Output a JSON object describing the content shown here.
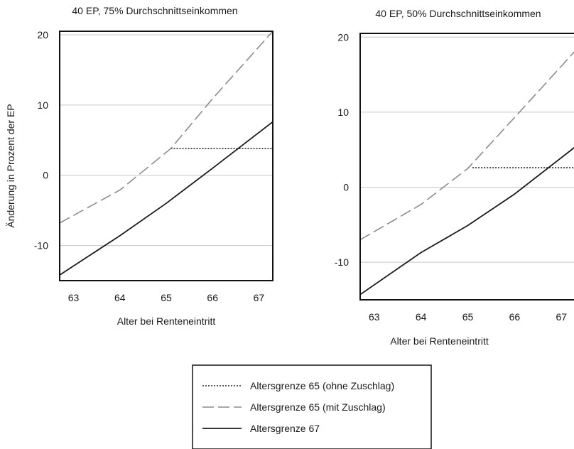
{
  "chart_data": [
    {
      "type": "line",
      "title": "40 EP, 75% Durchschnittseinkommen",
      "xlabel": "Alter bei Renteneintritt",
      "ylabel": "Änderung in Prozent der EP",
      "xlim": [
        62.7,
        67.3
      ],
      "ylim": [
        -15,
        20.5
      ],
      "xticks": [
        63,
        64,
        65,
        66,
        67
      ],
      "xtick_labels": [
        "63",
        "64",
        "65",
        "66",
        "67"
      ],
      "yticks": [
        -10,
        0,
        10,
        20
      ],
      "ytick_labels": [
        "-10",
        "0",
        "10",
        "20"
      ],
      "grid": "horizontal",
      "series": [
        {
          "name": "Altersgrenze 65 (ohne Zuschlag)",
          "style": "dotted",
          "color": "#222222",
          "points": [
            [
              65.1,
              3.8
            ],
            [
              67.3,
              3.8
            ]
          ]
        },
        {
          "name": "Altersgrenze 65 (mit Zuschlag)",
          "style": "dashed",
          "color": "#8c8c8c",
          "points": [
            [
              62.7,
              -6.8
            ],
            [
              64,
              -2.1
            ],
            [
              65.1,
              3.8
            ],
            [
              66,
              10.9
            ],
            [
              67.3,
              20.5
            ]
          ]
        },
        {
          "name": "Altersgrenze 67",
          "style": "solid",
          "color": "#1a1a1a",
          "points": [
            [
              62.7,
              -14.2
            ],
            [
              64,
              -8.6
            ],
            [
              65,
              -4.0
            ],
            [
              66,
              1.0
            ],
            [
              67.3,
              7.6
            ]
          ]
        }
      ]
    },
    {
      "type": "line",
      "title": "40 EP, 50% Durchschnittseinkommen",
      "xlabel": "Alter bei Renteneintritt",
      "ylabel": "",
      "xlim": [
        62.7,
        67.3
      ],
      "ylim": [
        -15,
        20.5
      ],
      "xticks": [
        63,
        64,
        65,
        66,
        67
      ],
      "xtick_labels": [
        "63",
        "64",
        "65",
        "66",
        "67"
      ],
      "yticks": [
        -10,
        0,
        10,
        20
      ],
      "ytick_labels": [
        "-10",
        "0",
        "10",
        "20"
      ],
      "grid": "horizontal",
      "series": [
        {
          "name": "Altersgrenze 65 (ohne Zuschlag)",
          "style": "dotted",
          "color": "#222222",
          "points": [
            [
              65.1,
              2.6
            ],
            [
              67.3,
              2.6
            ]
          ]
        },
        {
          "name": "Altersgrenze 65 (mit Zuschlag)",
          "style": "dashed",
          "color": "#8c8c8c",
          "points": [
            [
              62.7,
              -7.0
            ],
            [
              64,
              -2.3
            ],
            [
              65.0,
              2.5
            ],
            [
              66,
              9.3
            ],
            [
              67.3,
              18.2
            ]
          ]
        },
        {
          "name": "Altersgrenze 67",
          "style": "solid",
          "color": "#1a1a1a",
          "points": [
            [
              62.7,
              -14.3
            ],
            [
              64,
              -8.7
            ],
            [
              65,
              -5.1
            ],
            [
              66,
              -0.9
            ],
            [
              67.3,
              5.4
            ]
          ]
        }
      ]
    }
  ],
  "legend": {
    "placement": "bottom-center",
    "items": [
      {
        "label": "Altersgrenze 65 (ohne Zuschlag)",
        "style": "dotted",
        "color": "#222222"
      },
      {
        "label": "Altersgrenze 65 (mit Zuschlag)",
        "style": "dashed",
        "color": "#8c8c8c"
      },
      {
        "label": "Altersgrenze 67",
        "style": "solid",
        "color": "#1a1a1a"
      }
    ]
  }
}
